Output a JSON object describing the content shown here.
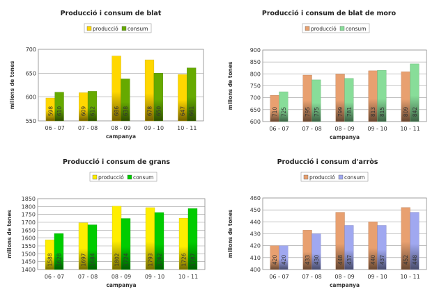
{
  "chart_data": [
    {
      "type": "bar",
      "title": "Producció i consum de blat",
      "xlabel": "campanya",
      "ylabel": "milions de tones",
      "categories": [
        "06 - 07",
        "07 - 08",
        "08 - 09",
        "09 - 10",
        "10 - 11"
      ],
      "ylim": [
        550,
        700
      ],
      "ystep": 50,
      "grid": true,
      "legend": "top-center",
      "series": [
        {
          "name": "producció",
          "values": [
            598,
            609,
            686,
            678,
            647
          ],
          "color": "#ffd700"
        },
        {
          "name": "consum",
          "values": [
            610,
            612,
            638,
            650,
            661
          ],
          "color": "#66aa00"
        }
      ]
    },
    {
      "type": "bar",
      "title": "Producció i consum de blat de moro",
      "xlabel": "campanya",
      "ylabel": "milions de tones",
      "categories": [
        "06 - 07",
        "07 - 08",
        "08 - 09",
        "09 - 10",
        "10 - 11"
      ],
      "ylim": [
        600,
        900
      ],
      "ystep": 50,
      "grid": true,
      "legend": "top-center",
      "series": [
        {
          "name": "producció",
          "values": [
            710,
            795,
            799,
            813,
            809
          ],
          "color": "#e8a070"
        },
        {
          "name": "consum",
          "values": [
            725,
            775,
            781,
            815,
            842
          ],
          "color": "#88dd99"
        }
      ]
    },
    {
      "type": "bar",
      "title": "Producció i consum de grans",
      "xlabel": "campanya",
      "ylabel": "milions de tones",
      "categories": [
        "06 - 07",
        "07 - 08",
        "08 - 09",
        "09 - 10",
        "10 - 11"
      ],
      "ylim": [
        1400,
        1850
      ],
      "ystep": 50,
      "grid": true,
      "legend": "top-center",
      "series": [
        {
          "name": "producció",
          "values": [
            1588,
            1697,
            1802,
            1793,
            1726
          ],
          "color": "#ffee00"
        },
        {
          "name": "consum",
          "values": [
            1628,
            1684,
            1724,
            1762,
            1787
          ],
          "color": "#00cc00"
        }
      ]
    },
    {
      "type": "bar",
      "title": "Producció i consum d'arròs",
      "xlabel": "campanya",
      "ylabel": "milions de tones",
      "categories": [
        "06 - 07",
        "07 - 08",
        "08 - 09",
        "09 - 10",
        "10 - 11"
      ],
      "ylim": [
        400,
        460
      ],
      "ystep": 10,
      "grid": true,
      "legend": "top-center",
      "series": [
        {
          "name": "producció",
          "values": [
            420,
            433,
            448,
            440,
            452
          ],
          "color": "#e8a070"
        },
        {
          "name": "consum",
          "values": [
            420,
            430,
            437,
            437,
            448
          ],
          "color": "#a0a8f0"
        }
      ]
    }
  ]
}
